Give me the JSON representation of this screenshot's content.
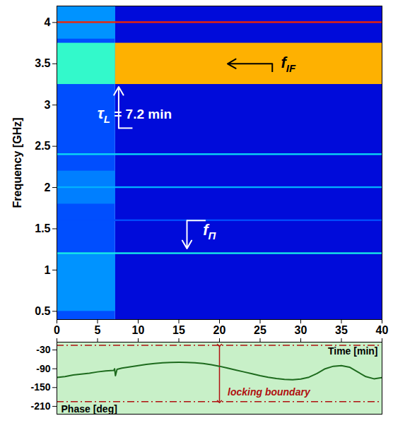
{
  "chart_data": [
    {
      "type": "heatmap",
      "y_label": "Frequency [GHz]",
      "xlim": [
        0,
        40
      ],
      "xticks": [
        0,
        5,
        10,
        15,
        20,
        25,
        30,
        35,
        40
      ],
      "ylim": [
        0.4,
        4.2
      ],
      "yticks": [
        0.5,
        1,
        1.5,
        2,
        2.5,
        3,
        3.5,
        4
      ],
      "zlim": [
        0,
        1
      ],
      "cells": [
        {
          "t": [
            7.2,
            40
          ],
          "f": [
            0.4,
            4.2
          ],
          "v": 0.1
        },
        {
          "t": [
            0,
            7.2
          ],
          "f": [
            0.4,
            4.2
          ],
          "v": 0.2
        },
        {
          "t": [
            0,
            7.2
          ],
          "f": [
            0.5,
            1.2
          ],
          "v": 0.27
        },
        {
          "t": [
            0,
            7.2
          ],
          "f": [
            1.8,
            2.2
          ],
          "v": 0.25
        },
        {
          "t": [
            0,
            7.2
          ],
          "f": [
            3.8,
            4.2
          ],
          "v": 0.27
        },
        {
          "t": [
            0,
            7.2
          ],
          "f": [
            3.25,
            3.75
          ],
          "v": 0.42
        },
        {
          "t": [
            7.2,
            40
          ],
          "f": [
            3.25,
            3.75
          ],
          "v": 0.7
        },
        {
          "t": [
            0,
            40
          ],
          "f": [
            3.99,
            4.01
          ],
          "v": 0.85
        },
        {
          "t": [
            0,
            40
          ],
          "f": [
            2.39,
            2.41
          ],
          "v": 0.35
        },
        {
          "t": [
            0,
            40
          ],
          "f": [
            1.99,
            2.01
          ],
          "v": 0.3
        },
        {
          "t": [
            0,
            40
          ],
          "f": [
            1.59,
            1.61
          ],
          "v": 0.2
        },
        {
          "t": [
            0,
            40
          ],
          "f": [
            1.19,
            1.21
          ],
          "v": 0.38
        }
      ],
      "annotations": [
        {
          "parts": [
            {
              "text": "f",
              "sub": false
            },
            {
              "text": "IF",
              "sub": true
            }
          ],
          "x": 28.5,
          "y": 3.45,
          "color": "black",
          "arrow": [
            26.5,
            3.5,
            21,
            3.5
          ],
          "tail": [
            26.5,
            3.5,
            26.5,
            3.4
          ]
        },
        {
          "parts": [
            {
              "text": "τ",
              "sub": false
            },
            {
              "text": "L",
              "sub": true
            },
            {
              "text": " = 7.2 min",
              "sub": false
            }
          ],
          "x": 9.6,
          "y": 2.83,
          "color": "white",
          "arrow": [
            7.6,
            2.72,
            7.6,
            3.22
          ],
          "tail": [
            7.6,
            2.72,
            9.3,
            2.72
          ]
        },
        {
          "parts": [
            {
              "text": "f",
              "sub": false
            },
            {
              "text": "Π",
              "sub": true
            }
          ],
          "x": 18.8,
          "y": 1.42,
          "color": "white",
          "arrow": [
            16,
            1.6,
            16,
            1.26
          ],
          "tail": [
            16,
            1.6,
            18.3,
            1.6
          ]
        }
      ]
    },
    {
      "type": "line",
      "x_label": "Time [min]",
      "y_label": "Phase [deg]",
      "xlim": [
        0,
        40
      ],
      "xticks": [
        0,
        5,
        10,
        15,
        20,
        25,
        30,
        35,
        40
      ],
      "ylim": [
        -235,
        -5
      ],
      "yticks": [
        -30,
        -90,
        -150,
        -210
      ],
      "tick_labels": "y",
      "x": [
        0,
        1,
        2,
        3,
        4,
        5,
        6,
        7,
        7.1,
        7.2,
        7.4,
        8,
        9,
        10,
        11,
        12,
        13,
        14,
        15,
        16,
        17,
        18,
        19,
        20,
        21,
        22,
        23,
        24,
        25,
        26,
        27,
        28,
        29,
        30,
        31,
        32,
        33,
        34,
        35,
        36,
        37,
        38,
        39,
        40
      ],
      "values": [
        -118,
        -115,
        -110,
        -107,
        -104,
        -100,
        -97,
        -95,
        -90,
        -112,
        -92,
        -88,
        -84,
        -80,
        -76,
        -73,
        -71,
        -70,
        -69,
        -70,
        -71,
        -73,
        -77,
        -82,
        -88,
        -94,
        -100,
        -106,
        -112,
        -117,
        -121,
        -124,
        -125,
        -123,
        -117,
        -105,
        -90,
        -82,
        -80,
        -85,
        -100,
        -115,
        -122,
        -118
      ],
      "color": "#1e6b1e",
      "boundaries": [
        -15,
        -195
      ],
      "boundary_label": {
        "text": "locking boundary",
        "x": 21,
        "y": -165,
        "arrow_x": 20,
        "color": "#b01010"
      }
    }
  ]
}
